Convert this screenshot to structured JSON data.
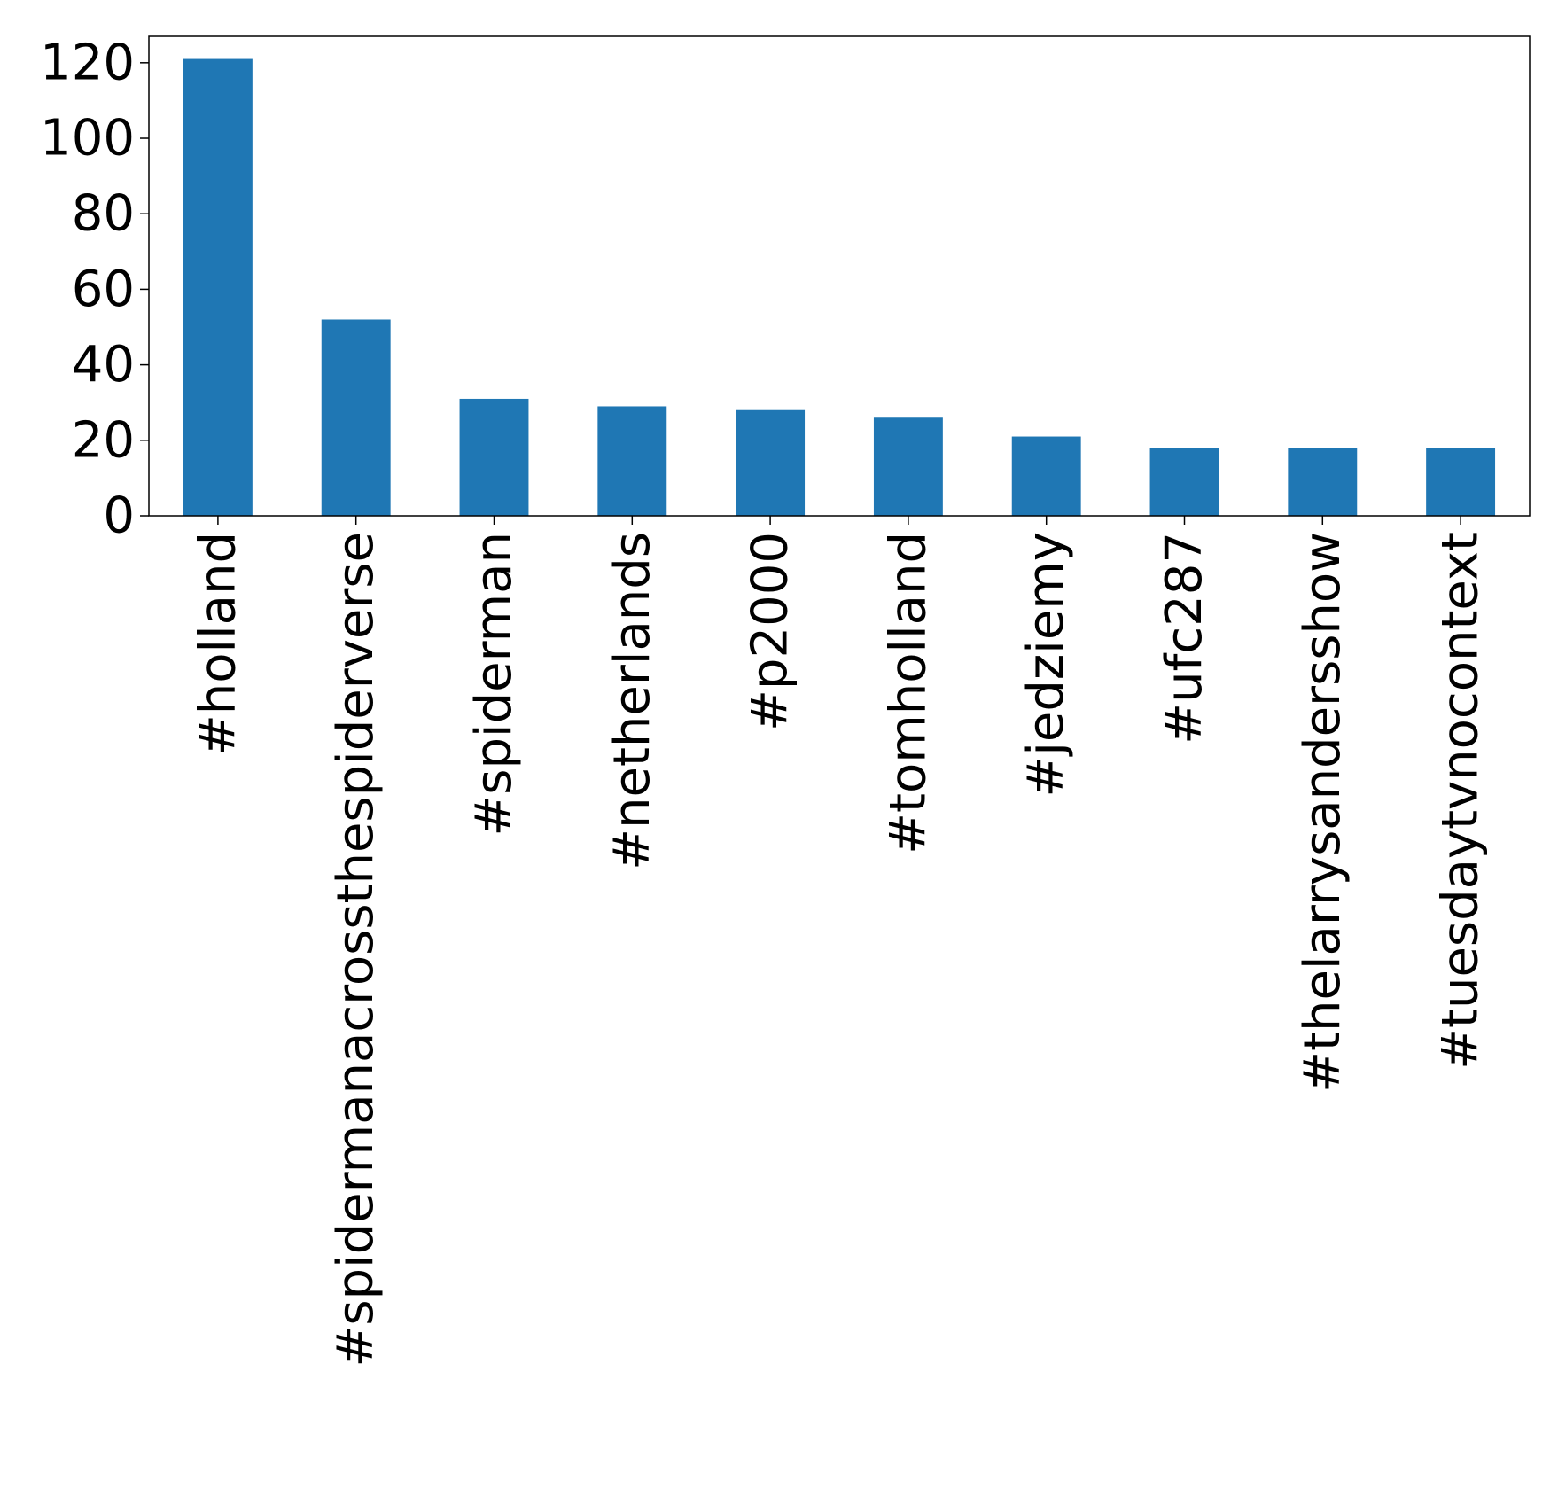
{
  "chart_data": {
    "type": "bar",
    "title": "",
    "xlabel": "",
    "ylabel": "",
    "categories": [
      "#holland",
      "#spidermanacrossthespiderverse",
      "#spiderman",
      "#netherlands",
      "#p2000",
      "#tomholland",
      "#jedziemy",
      "#ufc287",
      "#thelarrysandersshow",
      "#tuesdaytvnocontext"
    ],
    "values": [
      121,
      52,
      31,
      29,
      28,
      26,
      21,
      18,
      18,
      18
    ],
    "ylim": [
      0,
      127
    ],
    "yticks": [
      0,
      20,
      40,
      60,
      80,
      100,
      120
    ],
    "grid": false,
    "legend": "none",
    "bar_color": "#1f77b4"
  }
}
